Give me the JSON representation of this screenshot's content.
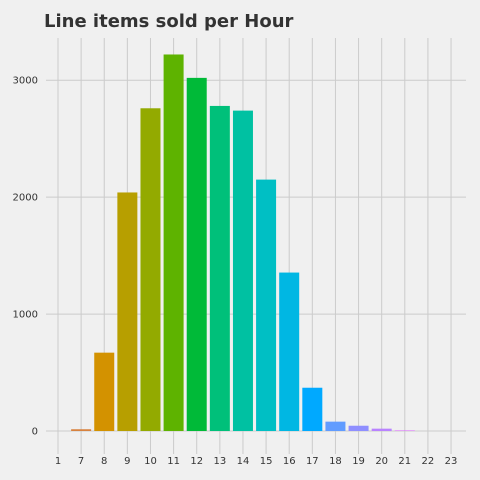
{
  "chart_data": {
    "type": "bar",
    "title": "Line items sold per Hour",
    "xlabel": "",
    "ylabel": "",
    "categories": [
      "1",
      "7",
      "8",
      "9",
      "10",
      "11",
      "12",
      "13",
      "14",
      "15",
      "16",
      "17",
      "18",
      "19",
      "20",
      "21",
      "22",
      "23"
    ],
    "values": [
      0,
      15,
      670,
      2040,
      2760,
      3220,
      3020,
      2780,
      2740,
      2150,
      1355,
      370,
      80,
      45,
      20,
      5,
      2,
      1
    ],
    "colors": [
      "#e24a33",
      "#d7823f",
      "#d39200",
      "#b79f00",
      "#93aa00",
      "#5eb300",
      "#00ba38",
      "#00c07a",
      "#00c1a2",
      "#00bfc4",
      "#00b7e3",
      "#00a9ff",
      "#619cff",
      "#8f8fff",
      "#b983ff",
      "#db72fb",
      "#f564e3",
      "#ff64b0"
    ],
    "yticks": [
      "0",
      "1000",
      "2000",
      "3000"
    ],
    "ylim": [
      0,
      3400
    ],
    "grid": true,
    "legend": "none"
  }
}
